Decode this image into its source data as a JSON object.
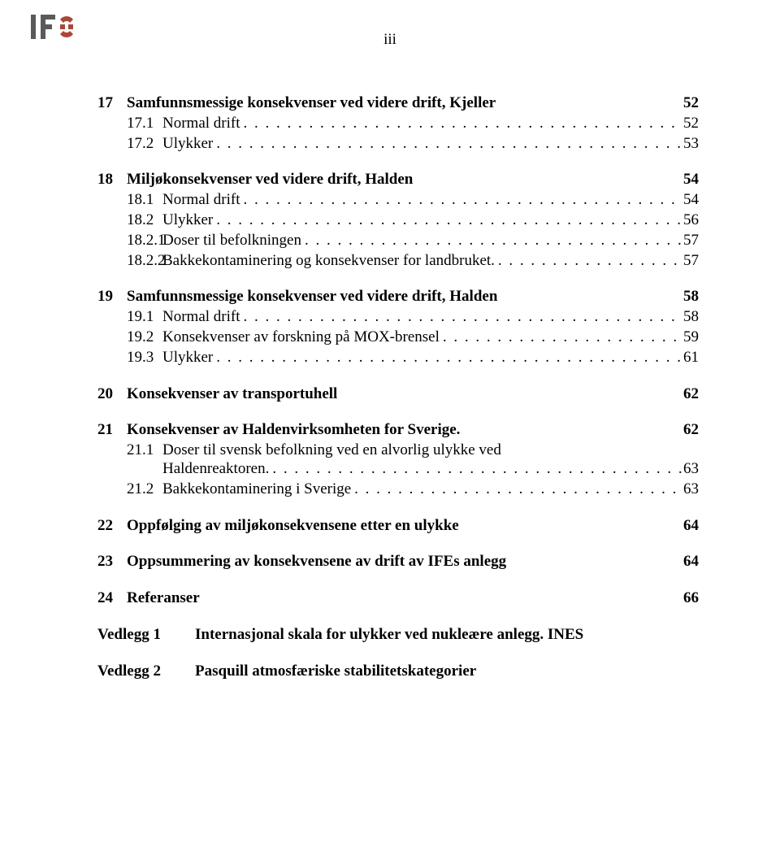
{
  "page_roman": "iii",
  "logo_text": "IFE",
  "colors": {
    "text": "#000000",
    "bg": "#ffffff",
    "logo_dark": "#5a5a5a",
    "logo_red": "#a94838"
  },
  "toc": [
    {
      "num": "17",
      "title": "Samfunnsmessige konsekvenser ved videre drift, Kjeller",
      "page": "52",
      "bold": true,
      "subs": [
        {
          "num": "17.1",
          "title": "Normal drift",
          "page": "52"
        },
        {
          "num": "17.2",
          "title": "Ulykker",
          "page": "53"
        }
      ]
    },
    {
      "num": "18",
      "title": "Miljøkonsekvenser ved videre drift, Halden",
      "page": "54",
      "bold": true,
      "subs": [
        {
          "num": "18.1",
          "title": "Normal drift",
          "page": "54"
        },
        {
          "num": "18.2",
          "title": "Ulykker",
          "page": "56"
        },
        {
          "num": "18.2.1",
          "title": "Doser til befolkningen",
          "page": "57"
        },
        {
          "num": "18.2.2",
          "title": "Bakkekontaminering og konsekvenser for landbruket.",
          "page": "57"
        }
      ]
    },
    {
      "num": "19",
      "title": "Samfunnsmessige konsekvenser ved videre drift, Halden",
      "page": "58",
      "bold": true,
      "subs": [
        {
          "num": "19.1",
          "title": "Normal drift",
          "page": "58"
        },
        {
          "num": "19.2",
          "title": "Konsekvenser av forskning på MOX-brensel",
          "page": "59"
        },
        {
          "num": "19.3",
          "title": "Ulykker",
          "page": "61"
        }
      ]
    },
    {
      "num": "20",
      "title": "Konsekvenser av transportuhell",
      "page": "62",
      "bold": true,
      "subs": []
    },
    {
      "num": "21",
      "title": "Konsekvenser av Haldenvirksomheten for Sverige.",
      "page": "62",
      "bold": true,
      "subs": [
        {
          "num": "21.1",
          "title_line1": "Doser til svensk befolkning ved en alvorlig ulykke ved",
          "title_line2": "Haldenreaktoren.",
          "page": "63",
          "multiline": true
        },
        {
          "num": "21.2",
          "title": "Bakkekontaminering i Sverige",
          "page": "63"
        }
      ]
    },
    {
      "num": "22",
      "title": "Oppfølging av miljøkonsekvensene etter en ulykke",
      "page": "64",
      "bold": true,
      "subs": []
    },
    {
      "num": "23",
      "title": "Oppsummering av konsekvensene av drift av IFEs anlegg",
      "page": "64",
      "bold": true,
      "subs": []
    },
    {
      "num": "24",
      "title": "Referanser",
      "page": "66",
      "bold": true,
      "subs": []
    }
  ],
  "vedlegg": [
    {
      "label": "Vedlegg 1",
      "title": "Internasjonal skala for ulykker ved nukleære anlegg. INES"
    },
    {
      "label": "Vedlegg 2",
      "title": "Pasquill atmosfæriske stabilitetskategorier"
    }
  ],
  "dots": ". . . . . . . . . . . . . . . . . . . . . . . . . . . . . . . . . . . . . . . . . . . . . . . . . . . . . . . . . . . . . . . . . . . ."
}
